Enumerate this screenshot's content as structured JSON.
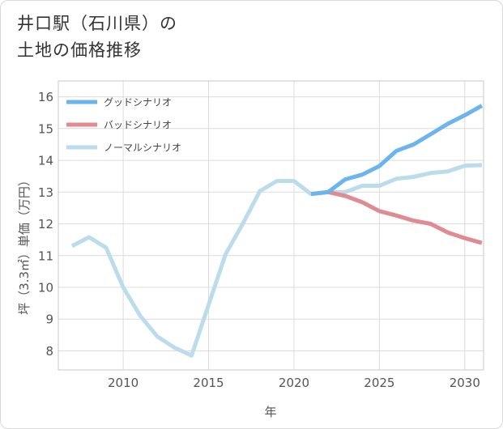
{
  "title": {
    "line1": "井口駅（石川県）の",
    "line2": "土地の価格推移"
  },
  "chart_data": {
    "type": "line",
    "xlabel": "年",
    "ylabel": "坪（3.3㎡）単価（万円）",
    "xlim": [
      2006.2,
      2031.1
    ],
    "ylim": [
      7.4,
      16.5
    ],
    "xticks": [
      2010,
      2015,
      2020,
      2025,
      2030
    ],
    "yticks": [
      8,
      9,
      10,
      11,
      12,
      13,
      14,
      15,
      16
    ],
    "grid": true,
    "legend_position": "top-left",
    "series": [
      {
        "name": "グッドシナリオ",
        "color": "#6cb4ee",
        "x": [
          2021,
          2022,
          2023,
          2024,
          2025,
          2026,
          2027,
          2028,
          2029,
          2030,
          2031
        ],
        "y": [
          12.94,
          13.0,
          13.4,
          13.55,
          13.82,
          14.3,
          14.5,
          14.82,
          15.15,
          15.42,
          15.72
        ]
      },
      {
        "name": "バッドシナリオ",
        "color": "#e08a92",
        "x": [
          2021,
          2022,
          2023,
          2024,
          2025,
          2026,
          2027,
          2028,
          2029,
          2030,
          2031
        ],
        "y": [
          12.94,
          13.0,
          12.88,
          12.68,
          12.4,
          12.26,
          12.1,
          12.0,
          11.73,
          11.55,
          11.4
        ]
      },
      {
        "name": "ノーマルシナリオ",
        "color": "#bcdcec",
        "x": [
          2007,
          2008,
          2009,
          2010,
          2011,
          2012,
          2013,
          2014,
          2015,
          2016,
          2017,
          2018,
          2019,
          2020,
          2021,
          2022,
          2023,
          2024,
          2025,
          2026,
          2027,
          2028,
          2029,
          2030,
          2031
        ],
        "y": [
          11.3,
          11.58,
          11.25,
          10.0,
          9.1,
          8.45,
          8.1,
          7.85,
          9.45,
          11.05,
          12.0,
          13.03,
          13.35,
          13.35,
          12.94,
          13.0,
          13.0,
          13.2,
          13.2,
          13.42,
          13.48,
          13.6,
          13.65,
          13.83,
          13.85
        ]
      }
    ]
  }
}
